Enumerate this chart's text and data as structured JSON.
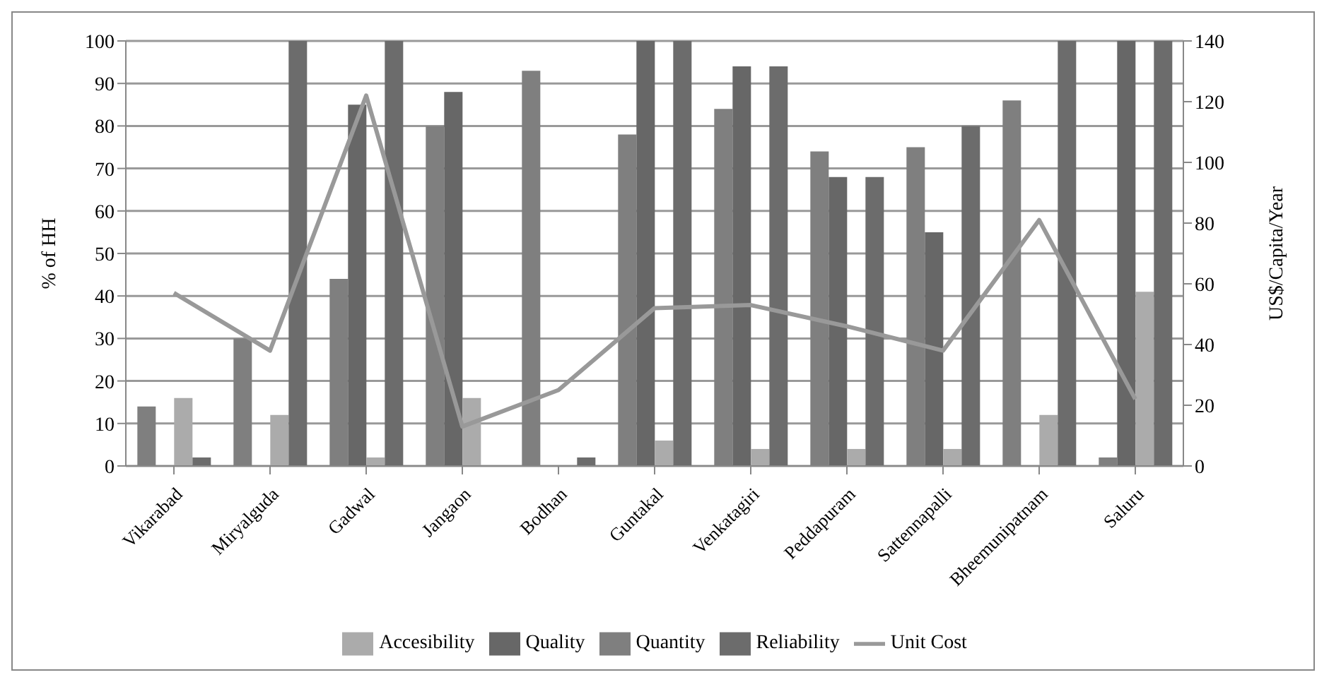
{
  "chart_data": {
    "type": "bar",
    "ylabel": "% of HH",
    "y2label": "US$/Capita/Year",
    "categories": [
      "Vikarabad",
      "Miryalguda",
      "Gadwal",
      "Jangaon",
      "Bodhan",
      "Guntakal",
      "Venkatagiri",
      "Peddapuram",
      "Sattennapalli",
      "Bheemunipatnam",
      "Saluru"
    ],
    "series": [
      {
        "name": "Quantity",
        "color": "#7f7f7f",
        "values": [
          14,
          30,
          44,
          80,
          93,
          78,
          84,
          74,
          75,
          86,
          2
        ]
      },
      {
        "name": "Quality",
        "color": "#676767",
        "values": [
          null,
          null,
          85,
          88,
          null,
          100,
          94,
          68,
          55,
          null,
          100
        ]
      },
      {
        "name": "Accesibility",
        "color": "#ababab",
        "values": [
          16,
          12,
          2,
          16,
          null,
          6,
          4,
          4,
          4,
          12,
          41
        ]
      },
      {
        "name": "Reliability",
        "color": "#6c6c6c",
        "values": [
          2,
          100,
          100,
          null,
          2,
          100,
          94,
          68,
          80,
          100,
          100
        ]
      },
      {
        "name": "Unit Cost",
        "type": "line",
        "axis": "y2",
        "color": "#999999",
        "values": [
          57,
          38,
          122,
          13,
          25,
          52,
          53,
          46,
          38,
          81,
          22
        ]
      }
    ],
    "ylim": [
      0,
      100
    ],
    "yticks": [
      0,
      10,
      20,
      30,
      40,
      50,
      60,
      70,
      80,
      90,
      100
    ],
    "y2lim": [
      0,
      140
    ],
    "y2ticks": [
      0,
      20,
      40,
      60,
      80,
      100,
      120,
      140
    ],
    "grid": "y",
    "legend": "bottom",
    "marker": "none"
  }
}
